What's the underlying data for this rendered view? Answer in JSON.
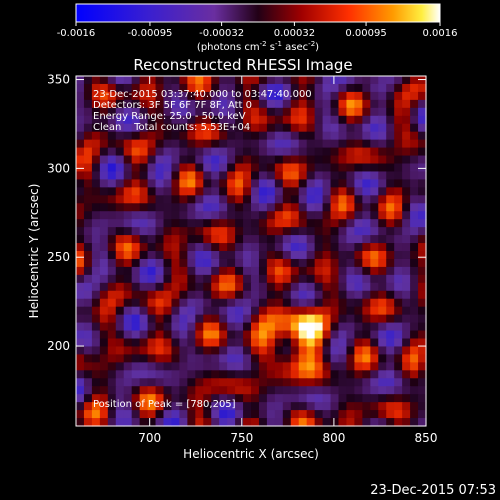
{
  "colorbar": {
    "ticks": [
      "-0.0016",
      "-0.00095",
      "-0.00032",
      "0.00032",
      "0.00095",
      "0.0016"
    ],
    "tick_values": [
      -0.0016,
      -0.00095,
      -0.00032,
      0.00032,
      0.00095,
      0.0016
    ],
    "range": [
      -0.0016,
      0.0016
    ],
    "units_main": "(photons cm",
    "units_sup1": "-2",
    "units_mid": " s",
    "units_sup2": "-1",
    "units_tail": " asec",
    "units_sup3": "-2",
    "units_close": ")",
    "colormap": "blue-purple-red-orange-yellow-white"
  },
  "chart_data": {
    "type": "heatmap",
    "title": "Reconstructed RHESSI Image",
    "xlabel": "Heliocentric X (arcsec)",
    "ylabel": "Heliocentric Y (arcsec)",
    "xlim": [
      660,
      850
    ],
    "ylim": [
      155,
      352
    ],
    "xticks": [
      700,
      750,
      800,
      850
    ],
    "yticks": [
      200,
      250,
      300,
      350
    ],
    "annotations": [
      "23-Dec-2015 03:37:40.000 to 03:47:40.000",
      "Detectors: 3F 5F 6F 7F 8F, Att 0",
      "Energy Range: 25.0 - 50.0 keV",
      "Clean    Total counts: 5.53E+04"
    ],
    "peak_label": "Position of Peak = [780,205]",
    "peak": [
      780,
      205
    ],
    "grid": false
  },
  "footer": {
    "timestamp": "23-Dec-2015 07:53"
  },
  "colors": {
    "background": "#000000",
    "text": "#ffffff"
  }
}
